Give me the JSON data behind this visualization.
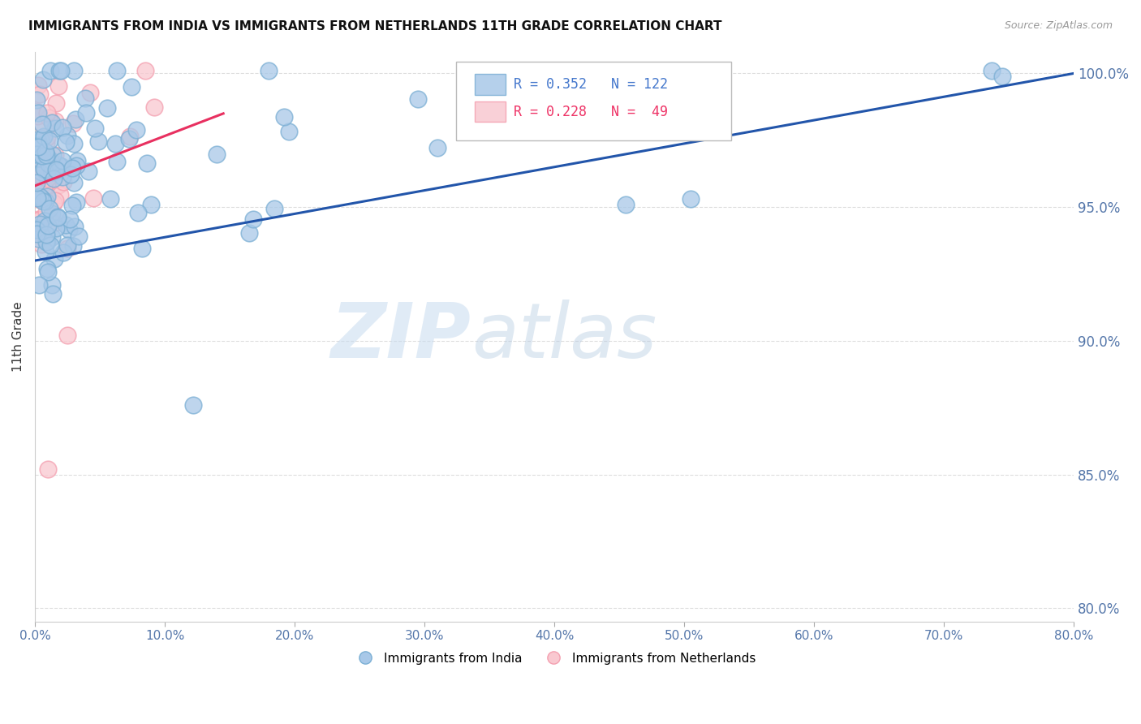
{
  "title": "IMMIGRANTS FROM INDIA VS IMMIGRANTS FROM NETHERLANDS 11TH GRADE CORRELATION CHART",
  "source": "Source: ZipAtlas.com",
  "ylabel": "11th Grade",
  "legend_india": "Immigrants from India",
  "legend_netherlands": "Immigrants from Netherlands",
  "india_color": "#7BAFD4",
  "india_face_color": "#A8C8E8",
  "netherlands_color": "#F4A0B0",
  "netherlands_face_color": "#F9C8D0",
  "india_line_color": "#2255AA",
  "netherlands_line_color": "#E83060",
  "india_R": 0.352,
  "india_N": 122,
  "netherlands_R": 0.228,
  "netherlands_N": 49,
  "xmin": 0.0,
  "xmax": 0.8,
  "ymin": 0.795,
  "ymax": 1.008,
  "yticks": [
    0.8,
    0.85,
    0.9,
    0.95,
    1.0
  ],
  "xticks": [
    0.0,
    0.1,
    0.2,
    0.3,
    0.4,
    0.5,
    0.6,
    0.7,
    0.8
  ],
  "watermark_zip": "ZIP",
  "watermark_atlas": "atlas",
  "background_color": "#FFFFFF"
}
